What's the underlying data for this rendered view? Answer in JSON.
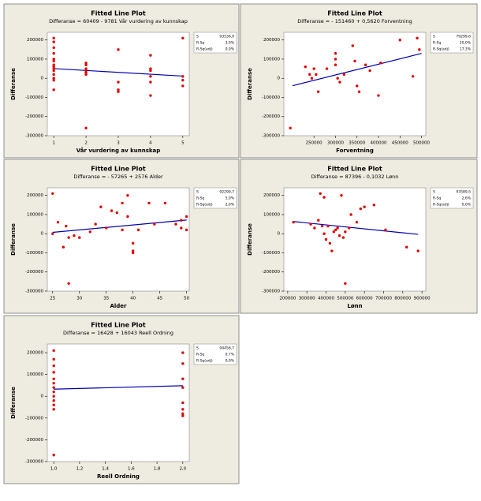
{
  "chart_data": [
    {
      "type": "scatter",
      "title": "Fitted Line Plot",
      "subtitle": "Differanse = 60409 - 9781 Vår vurdering av kunnskap",
      "x_label": "Vår vurdering av kunnskap",
      "y_label": "Differanse",
      "xlim": [
        0.8,
        5.2
      ],
      "xticks": [
        1,
        2,
        3,
        4,
        5
      ],
      "ylim": [
        -300000,
        240000
      ],
      "yticks": [
        -300000,
        -200000,
        -100000,
        0,
        100000,
        200000
      ],
      "stats": [
        {
          "label": "S",
          "value": "93536,9"
        },
        {
          "label": "R-Sq",
          "value": "3,9%"
        },
        {
          "label": "R-Sq(adj)",
          "value": "0,0%"
        }
      ],
      "point_color": "#e00000",
      "line_color": "#0000b0",
      "x": [
        1,
        1,
        1,
        1,
        1,
        1,
        1,
        1,
        1,
        1,
        1,
        1,
        1,
        1,
        2,
        2,
        2,
        2,
        2,
        2,
        2,
        3,
        3,
        3,
        3,
        4,
        4,
        4,
        4,
        4,
        4,
        5,
        5,
        5,
        5
      ],
      "values": [
        210000,
        190000,
        160000,
        130000,
        100000,
        90000,
        70000,
        60000,
        50000,
        40000,
        20000,
        0,
        -10000,
        -60000,
        80000,
        70000,
        50000,
        40000,
        30000,
        20000,
        -260000,
        150000,
        -20000,
        -60000,
        -70000,
        120000,
        50000,
        40000,
        10000,
        -20000,
        -90000,
        210000,
        10000,
        -10000,
        -40000
      ],
      "fit": {
        "x": [
          1,
          5
        ],
        "values": [
          50600,
          11500
        ]
      }
    },
    {
      "type": "scatter",
      "title": "Fitted Line Plot",
      "subtitle": "Differanse = - 151460 + 0,5620 Forventning",
      "x_label": "Forventning",
      "y_label": "Differanse",
      "xlim": [
        180000,
        510000
      ],
      "xticks": [
        250000,
        300000,
        350000,
        400000,
        450000,
        500000
      ],
      "ylim": [
        -300000,
        240000
      ],
      "yticks": [
        -300000,
        -200000,
        -100000,
        0,
        100000,
        200000
      ],
      "stats": [
        {
          "label": "S",
          "value": "79299,6"
        },
        {
          "label": "R-Sq",
          "value": "20,0%"
        },
        {
          "label": "R-Sq(adj)",
          "value": "17,3%"
        }
      ],
      "point_color": "#e00000",
      "line_color": "#0000b0",
      "x": [
        195000,
        230000,
        240000,
        245000,
        250000,
        255000,
        260000,
        280000,
        300000,
        300000,
        300000,
        305000,
        310000,
        320000,
        340000,
        345000,
        350000,
        355000,
        370000,
        380000,
        400000,
        405000,
        450000,
        480000,
        490000,
        495000
      ],
      "values": [
        -260000,
        60000,
        20000,
        0,
        50000,
        20000,
        -70000,
        50000,
        130000,
        100000,
        70000,
        0,
        -20000,
        20000,
        170000,
        90000,
        -40000,
        -70000,
        70000,
        40000,
        -90000,
        80000,
        200000,
        10000,
        210000,
        150000
      ],
      "fit": {
        "x": [
          200000,
          500000
        ],
        "values": [
          -39000,
          130000
        ]
      }
    },
    {
      "type": "scatter",
      "title": "Fitted Line Plot",
      "subtitle": "Differanse = - 57265 + 2576 Alder",
      "x_label": "Alder",
      "y_label": "Differanse",
      "xlim": [
        24,
        50.5
      ],
      "xticks": [
        25,
        30,
        35,
        40,
        45,
        50
      ],
      "ylim": [
        -300000,
        240000
      ],
      "yticks": [
        -300000,
        -200000,
        -100000,
        0,
        100000,
        200000
      ],
      "stats": [
        {
          "label": "S",
          "value": "92290,7"
        },
        {
          "label": "R-Sq",
          "value": "5,0%"
        },
        {
          "label": "R-Sq(adj)",
          "value": "2,0%"
        }
      ],
      "point_color": "#e00000",
      "line_color": "#0000b0",
      "x": [
        25,
        25,
        26,
        27,
        27.5,
        28,
        28,
        29,
        30,
        32,
        33,
        34,
        35,
        36,
        37,
        38,
        38,
        39,
        39,
        40,
        40,
        40,
        41,
        43,
        44,
        46,
        48,
        49,
        49,
        50,
        50
      ],
      "values": [
        210000,
        0,
        60000,
        -70000,
        40000,
        -260000,
        -20000,
        -10000,
        -20000,
        10000,
        50000,
        140000,
        30000,
        120000,
        110000,
        160000,
        20000,
        90000,
        200000,
        -50000,
        -90000,
        -100000,
        20000,
        160000,
        50000,
        160000,
        50000,
        70000,
        30000,
        90000,
        20000
      ],
      "fit": {
        "x": [
          25,
          50
        ],
        "values": [
          7100,
          71500
        ]
      }
    },
    {
      "type": "scatter",
      "title": "Fitted Line Plot",
      "subtitle": "Differanse = 87396 - 0,1032 Lønn",
      "x_label": "Lønn",
      "y_label": "Differanse",
      "xlim": [
        180000,
        920000
      ],
      "xticks": [
        200000,
        300000,
        400000,
        500000,
        600000,
        700000,
        800000,
        900000
      ],
      "ylim": [
        -300000,
        240000
      ],
      "yticks": [
        -300000,
        -200000,
        -100000,
        0,
        100000,
        200000
      ],
      "stats": [
        {
          "label": "S",
          "value": "93589,5"
        },
        {
          "label": "R-Sq",
          "value": "2,6%"
        },
        {
          "label": "R-Sq(adj)",
          "value": "0,0%"
        }
      ],
      "point_color": "#e00000",
      "line_color": "#0000b0",
      "x": [
        230000,
        320000,
        340000,
        360000,
        370000,
        380000,
        390000,
        390000,
        400000,
        410000,
        420000,
        430000,
        440000,
        450000,
        460000,
        470000,
        480000,
        490000,
        500000,
        500000,
        520000,
        530000,
        560000,
        580000,
        600000,
        650000,
        710000,
        820000,
        880000
      ],
      "values": [
        60000,
        50000,
        30000,
        70000,
        210000,
        40000,
        190000,
        0,
        -30000,
        40000,
        -50000,
        -90000,
        10000,
        20000,
        30000,
        -10000,
        200000,
        -20000,
        -260000,
        10000,
        30000,
        100000,
        60000,
        130000,
        140000,
        150000,
        20000,
        -70000,
        -90000
      ],
      "fit": {
        "x": [
          230000,
          880000
        ],
        "values": [
          63700,
          -3400
        ]
      }
    },
    {
      "type": "scatter",
      "title": "Fitted Line Plot",
      "subtitle": "Differanse = 16428 + 16043 Reell Ordning",
      "x_label": "Reell Ordning",
      "y_label": "Differanse",
      "xlim": [
        0.95,
        2.05
      ],
      "xticks": [
        {
          "value": 1,
          "label": "1,0"
        },
        {
          "value": 1.2,
          "label": "1,2"
        },
        {
          "value": 1.4,
          "label": "1,4"
        },
        {
          "value": 1.6,
          "label": "1,6"
        },
        {
          "value": 1.8,
          "label": "1,8"
        },
        {
          "value": 2,
          "label": "2,0"
        }
      ],
      "ylim": [
        -300000,
        240000
      ],
      "yticks": [
        -300000,
        -200000,
        -100000,
        0,
        100000,
        200000
      ],
      "stats": [
        {
          "label": "S",
          "value": "94456,7"
        },
        {
          "label": "R-Sq",
          "value": "0,7%"
        },
        {
          "label": "R-Sq(adj)",
          "value": "0,0%"
        }
      ],
      "point_color": "#e00000",
      "line_color": "#0000b0",
      "x": [
        1,
        1,
        1,
        1,
        1,
        1,
        1,
        1,
        1,
        1,
        1,
        1,
        1,
        2,
        2,
        2,
        2,
        2,
        2,
        2,
        2
      ],
      "values": [
        210000,
        170000,
        140000,
        110000,
        80000,
        60000,
        40000,
        20000,
        0,
        -20000,
        -40000,
        -60000,
        -270000,
        200000,
        150000,
        80000,
        40000,
        -30000,
        -60000,
        -80000,
        -90000
      ],
      "fit": {
        "x": [
          1,
          2
        ],
        "values": [
          32500,
          48500
        ]
      }
    }
  ]
}
